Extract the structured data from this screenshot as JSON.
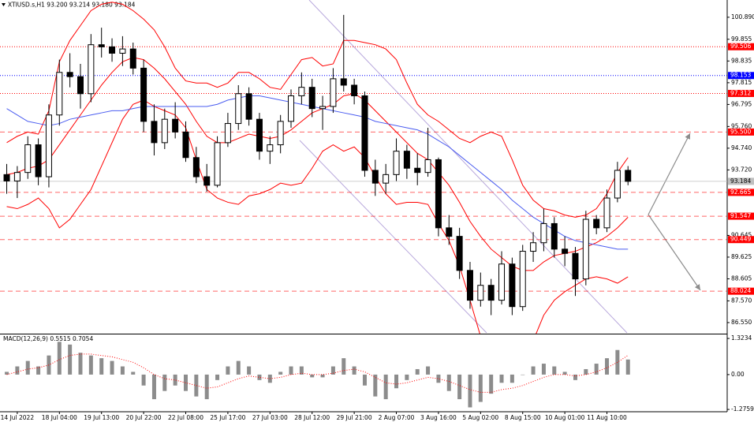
{
  "chart_data": [
    {
      "type": "candlestick",
      "title": "XTIUSD.s,H1  93.200 93.214 93.180 93.184",
      "xlim": [
        -0.64,
        68.42
      ],
      "ylim": [
        86.03,
        101.7
      ],
      "yticks": [
        {
          "value": 100.89,
          "label": "100.890"
        },
        99.855,
        98.835,
        97.815,
        96.795,
        {
          "value": 95.76,
          "label": "95.760"
        },
        {
          "value": 94.74,
          "label": "94.740"
        },
        {
          "value": 93.72,
          "label": "93.720"
        },
        90.645,
        89.625,
        88.605,
        {
          "value": 87.57,
          "label": "87.570"
        },
        {
          "value": 86.55,
          "label": "86.550"
        }
      ],
      "open": [
        93.5,
        93.2,
        93.6,
        94.9,
        93.4,
        96.3,
        98.3,
        98.1,
        97.3,
        99.6,
        99.5,
        99.2,
        99.4,
        98.5,
        96.0,
        95.0,
        96.1,
        95.5,
        94.3,
        93.4,
        93.0,
        95.0,
        95.9,
        97.3,
        96.1,
        94.6,
        94.9,
        96.0,
        97.2,
        97.6,
        96.6,
        96.7,
        98.0,
        97.7,
        97.2,
        93.7,
        93.1,
        93.5,
        94.6,
        93.8,
        93.6,
        94.2,
        91.0,
        90.6,
        89.0,
        87.6,
        88.3,
        87.6,
        89.3,
        87.3,
        89.9,
        90.3,
        91.2,
        90.0,
        89.8,
        88.6,
        91.4,
        91.0,
        92.4,
        93.7
      ],
      "high": [
        94.0,
        93.9,
        95.3,
        95.2,
        96.8,
        98.9,
        99.2,
        98.7,
        100.1,
        100.4,
        99.9,
        100.0,
        99.7,
        98.9,
        96.8,
        96.6,
        96.9,
        96.0,
        94.8,
        94.0,
        95.3,
        96.4,
        97.7,
        97.6,
        96.4,
        95.3,
        96.3,
        97.5,
        98.3,
        98.0,
        97.2,
        98.5,
        101.0,
        98.0,
        97.4,
        94.2,
        94.0,
        95.2,
        94.9,
        94.5,
        95.7,
        94.3,
        91.6,
        91.0,
        89.4,
        88.9,
        88.6,
        89.9,
        89.6,
        90.2,
        90.8,
        91.9,
        91.5,
        90.6,
        90.1,
        91.8,
        91.6,
        92.8,
        94.1,
        93.9
      ],
      "low": [
        92.6,
        92.4,
        93.3,
        93.0,
        92.9,
        95.8,
        97.6,
        96.6,
        96.9,
        99.0,
        98.8,
        98.6,
        98.2,
        95.5,
        94.4,
        94.7,
        95.2,
        94.1,
        93.1,
        92.7,
        92.9,
        94.8,
        95.6,
        95.8,
        94.2,
        94.0,
        94.5,
        95.7,
        96.8,
        96.2,
        95.6,
        96.4,
        97.4,
        96.8,
        93.4,
        92.5,
        92.6,
        93.2,
        93.3,
        93.0,
        93.4,
        90.6,
        90.2,
        88.6,
        87.2,
        87.3,
        86.9,
        87.4,
        86.9,
        87.1,
        89.4,
        89.9,
        89.6,
        89.2,
        87.8,
        88.3,
        90.7,
        90.8,
        92.2,
        93.0
      ],
      "close": [
        93.2,
        93.6,
        94.9,
        93.4,
        96.3,
        98.3,
        98.1,
        97.3,
        99.6,
        99.5,
        99.2,
        99.4,
        98.5,
        96.0,
        95.0,
        96.1,
        95.5,
        94.3,
        93.4,
        93.0,
        95.0,
        95.9,
        97.3,
        96.1,
        94.6,
        94.9,
        96.0,
        97.2,
        97.6,
        96.6,
        96.7,
        98.0,
        97.7,
        97.2,
        93.7,
        93.1,
        93.5,
        94.6,
        93.8,
        93.6,
        94.2,
        91.0,
        90.6,
        89.0,
        87.6,
        88.3,
        87.6,
        89.3,
        87.3,
        89.9,
        90.3,
        91.2,
        90.0,
        89.8,
        88.6,
        91.4,
        91.0,
        92.4,
        93.7,
        93.184
      ],
      "overlays": [
        {
          "color": "#ff0000",
          "values": [
            95.0,
            95.3,
            95.5,
            95.4,
            96.5,
            98.8,
            99.8,
            100.5,
            101.2,
            101.5,
            101.6,
            101.5,
            101.2,
            100.8,
            100.3,
            99.5,
            98.5,
            97.9,
            97.8,
            97.8,
            97.6,
            97.8,
            98.3,
            98.3,
            98.0,
            97.6,
            97.5,
            98.2,
            98.9,
            99.0,
            98.6,
            98.7,
            99.8,
            99.8,
            99.7,
            99.6,
            99.4,
            98.9,
            97.8,
            96.8,
            96.3,
            96.0,
            95.6,
            95.2,
            95.0,
            95.3,
            95.5,
            95.3,
            94.2,
            93.0,
            92.3,
            91.9,
            91.8,
            91.6,
            91.5,
            91.6,
            91.9,
            92.6,
            93.6,
            94.3
          ]
        },
        {
          "color": "#ff0000",
          "values": [
            93.5,
            93.6,
            93.8,
            93.9,
            94.2,
            94.9,
            95.6,
            96.3,
            97.0,
            97.7,
            98.3,
            98.8,
            99.0,
            98.9,
            98.5,
            98.0,
            97.4,
            96.8,
            96.0,
            95.3,
            95.0,
            95.0,
            95.2,
            95.4,
            95.3,
            95.2,
            95.3,
            95.6,
            96.0,
            96.4,
            96.6,
            96.8,
            97.2,
            97.3,
            97.0,
            96.5,
            96.0,
            95.5,
            95.0,
            94.5,
            94.2,
            93.6,
            93.0,
            92.2,
            91.3,
            90.6,
            90.0,
            89.6,
            89.2,
            89.0,
            89.0,
            89.4,
            89.7,
            89.8,
            89.9,
            90.1,
            90.3,
            90.6,
            91.0,
            91.5
          ]
        },
        {
          "color": "#ff0000",
          "values": [
            92.0,
            91.9,
            92.1,
            92.4,
            91.9,
            91.0,
            91.4,
            92.1,
            92.8,
            93.9,
            95.0,
            96.1,
            96.8,
            97.0,
            96.7,
            96.5,
            96.3,
            95.7,
            94.2,
            92.8,
            92.4,
            92.2,
            92.1,
            92.5,
            92.6,
            92.8,
            93.1,
            93.0,
            93.1,
            93.8,
            94.6,
            94.9,
            94.6,
            94.8,
            94.3,
            93.4,
            92.6,
            92.1,
            92.2,
            92.2,
            92.1,
            91.2,
            90.4,
            89.2,
            87.6,
            85.9,
            84.5,
            83.9,
            84.2,
            85.0,
            85.7,
            86.9,
            87.6,
            88.0,
            88.3,
            88.6,
            88.7,
            88.6,
            88.4,
            88.7
          ]
        },
        {
          "color": "#4a5cf0",
          "values": [
            96.6,
            96.3,
            96.0,
            95.9,
            95.8,
            95.9,
            96.1,
            96.2,
            96.3,
            96.4,
            96.5,
            96.5,
            96.6,
            96.7,
            96.7,
            96.7,
            96.7,
            96.7,
            96.7,
            96.7,
            96.8,
            97.0,
            97.1,
            97.2,
            97.2,
            97.1,
            97.0,
            96.9,
            96.8,
            96.7,
            96.6,
            96.5,
            96.4,
            96.3,
            96.2,
            96.0,
            95.9,
            95.8,
            95.7,
            95.6,
            95.4,
            95.1,
            94.8,
            94.4,
            94.0,
            93.6,
            93.2,
            92.8,
            92.3,
            91.9,
            91.5,
            91.2,
            90.9,
            90.6,
            90.4,
            90.3,
            90.2,
            90.1,
            90.0,
            90.0
          ]
        }
      ],
      "levels": [
        {
          "value": 99.506,
          "color": "#ff0000",
          "style": "dotted"
        },
        {
          "value": 98.153,
          "color": "#0000ff",
          "style": "dotted"
        },
        {
          "value": 97.312,
          "color": "#ff0000",
          "style": "dotted"
        },
        {
          "value": 95.5,
          "label": "95.500",
          "color": "#ff0000",
          "style": "dashed"
        },
        {
          "value": 92.665,
          "color": "#ff0000",
          "style": "dashed"
        },
        {
          "value": 91.547,
          "color": "#ff0000",
          "style": "dashed"
        },
        {
          "value": 90.449,
          "color": "#ff0000",
          "style": "dashed"
        },
        {
          "value": 88.024,
          "color": "#ff0000",
          "style": "dashed"
        }
      ],
      "current": {
        "value": 93.184,
        "color": "#c0c0c0"
      }
    },
    {
      "type": "macd",
      "title": "MACD(12,26,9) 0.5515 0.7054",
      "xlim": [
        -0.64,
        68.42
      ],
      "ylim": [
        -1.36,
        1.47
      ],
      "yticks": [
        1.3234,
        {
          "value": 0,
          "label": "0.00"
        },
        -1.2759
      ],
      "xticks": [
        {
          "value": 1,
          "label": "14 Jul 2022"
        },
        {
          "value": 5,
          "label": "18 Jul 04:00"
        },
        {
          "value": 9,
          "label": "19 Jul 13:00"
        },
        {
          "value": 13,
          "label": "20 Jul 22:00"
        },
        {
          "value": 17,
          "label": "22 Jul 08:00"
        },
        {
          "value": 21,
          "label": "25 Jul 17:00"
        },
        {
          "value": 25,
          "label": "27 Jul 03:00"
        },
        {
          "value": 29,
          "label": "28 Jul 12:00"
        },
        {
          "value": 33,
          "label": "29 Jul 21:00"
        },
        {
          "value": 37,
          "label": "2 Aug 07:00"
        },
        {
          "value": 41,
          "label": "3 Aug 16:00"
        },
        {
          "value": 45,
          "label": "5 Aug 02:00"
        },
        {
          "value": 49,
          "label": "8 Aug 15:00"
        },
        {
          "value": 53,
          "label": "10 Aug 01:00"
        },
        {
          "value": 57,
          "label": "11 Aug 10:00"
        }
      ],
      "series": [
        {
          "kind": "bar",
          "color": "#8c8c8c",
          "values": [
            0.1,
            0.3,
            0.5,
            0.3,
            0.7,
            1.2,
            1.1,
            0.8,
            0.7,
            0.6,
            0.5,
            0.3,
            0.1,
            -0.4,
            -0.9,
            -0.6,
            -0.4,
            -0.6,
            -0.8,
            -0.9,
            -0.2,
            0.3,
            0.5,
            0.3,
            -0.2,
            -0.3,
            0.1,
            0.3,
            0.3,
            -0.1,
            -0.1,
            0.3,
            0.6,
            0.3,
            -0.4,
            -0.8,
            -0.9,
            -0.5,
            -0.2,
            0.2,
            0.3,
            -0.3,
            -0.6,
            -0.9,
            -1.2,
            -1.0,
            -0.7,
            -0.3,
            -0.3,
            0.0,
            0.3,
            0.4,
            0.3,
            0.1,
            -0.2,
            0.2,
            0.4,
            0.6,
            0.9,
            0.5515
          ]
        },
        {
          "kind": "line",
          "style": "dotted",
          "color": "#ff0000",
          "values": [
            0.0,
            0.1,
            0.2,
            0.25,
            0.35,
            0.55,
            0.7,
            0.75,
            0.75,
            0.7,
            0.65,
            0.55,
            0.45,
            0.25,
            0.0,
            -0.15,
            -0.2,
            -0.3,
            -0.4,
            -0.5,
            -0.45,
            -0.3,
            -0.15,
            -0.05,
            -0.1,
            -0.15,
            -0.1,
            0.0,
            0.05,
            0.0,
            0.0,
            0.05,
            0.15,
            0.2,
            0.1,
            -0.1,
            -0.3,
            -0.35,
            -0.3,
            -0.2,
            -0.1,
            -0.15,
            -0.25,
            -0.4,
            -0.55,
            -0.65,
            -0.65,
            -0.55,
            -0.5,
            -0.4,
            -0.25,
            -0.1,
            0.0,
            0.0,
            -0.05,
            0.0,
            0.1,
            0.25,
            0.45,
            0.7054
          ]
        }
      ]
    }
  ]
}
